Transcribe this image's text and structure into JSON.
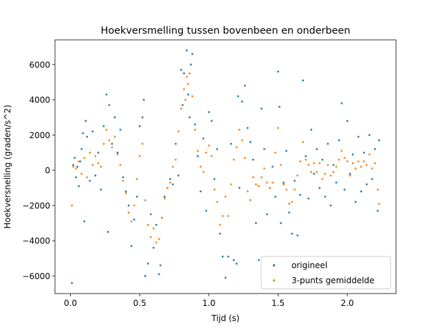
{
  "chart_data": {
    "type": "scatter",
    "title": "Hoekversmelling tussen bovenbeen en onderbeen",
    "xlabel": "Tijd (s)",
    "ylabel": "Hoekversnelling (graden/s^2)",
    "xlim": [
      -0.112,
      2.352
    ],
    "ylim": [
      -7000,
      7400
    ],
    "xticks": [
      0.0,
      0.5,
      1.0,
      1.5,
      2.0
    ],
    "xtick_labels": [
      "0.0",
      "0.5",
      "1.0",
      "1.5",
      "2.0"
    ],
    "yticks": [
      -6000,
      -4000,
      -2000,
      0,
      2000,
      4000,
      6000
    ],
    "ytick_labels": [
      "−6000",
      "−4000",
      "−2000",
      "0",
      "2000",
      "4000",
      "6000"
    ],
    "grid": false,
    "legend_position": "lower-right",
    "series": [
      {
        "name": "origineel",
        "color": "#1f77b4",
        "points": [
          [
            0.01,
            -6400
          ],
          [
            0.02,
            300
          ],
          [
            0.03,
            700
          ],
          [
            0.04,
            -400
          ],
          [
            0.05,
            200
          ],
          [
            0.06,
            -900
          ],
          [
            0.07,
            500
          ],
          [
            0.08,
            1200
          ],
          [
            0.09,
            2100
          ],
          [
            0.1,
            -2900
          ],
          [
            0.11,
            2800
          ],
          [
            0.12,
            1900
          ],
          [
            0.14,
            -600
          ],
          [
            0.16,
            2200
          ],
          [
            0.18,
            -300
          ],
          [
            0.2,
            1000
          ],
          [
            0.22,
            -1100
          ],
          [
            0.24,
            2500
          ],
          [
            0.26,
            4300
          ],
          [
            0.27,
            -3500
          ],
          [
            0.28,
            3700
          ],
          [
            0.3,
            1500
          ],
          [
            0.32,
            3000
          ],
          [
            0.34,
            1000
          ],
          [
            0.36,
            2300
          ],
          [
            0.38,
            -400
          ],
          [
            0.4,
            -1200
          ],
          [
            0.42,
            -2000
          ],
          [
            0.44,
            -4300
          ],
          [
            0.46,
            -2800
          ],
          [
            0.48,
            -1500
          ],
          [
            0.5,
            2500
          ],
          [
            0.52,
            3000
          ],
          [
            0.53,
            4000
          ],
          [
            0.54,
            -6000
          ],
          [
            0.56,
            -5300
          ],
          [
            0.58,
            -2500
          ],
          [
            0.6,
            -4400
          ],
          [
            0.62,
            -3100
          ],
          [
            0.64,
            -5900
          ],
          [
            0.65,
            -5400
          ],
          [
            0.66,
            -2700
          ],
          [
            0.68,
            -1500
          ],
          [
            0.7,
            -1000
          ],
          [
            0.72,
            -500
          ],
          [
            0.74,
            -800
          ],
          [
            0.76,
            1500
          ],
          [
            0.78,
            -300
          ],
          [
            0.8,
            5700
          ],
          [
            0.81,
            3700
          ],
          [
            0.82,
            5500
          ],
          [
            0.84,
            6800
          ],
          [
            0.85,
            4300
          ],
          [
            0.86,
            3000
          ],
          [
            0.87,
            6000
          ],
          [
            0.88,
            6600
          ],
          [
            0.9,
            2600
          ],
          [
            0.92,
            800
          ],
          [
            0.94,
            -1200
          ],
          [
            0.96,
            1800
          ],
          [
            0.98,
            -2300
          ],
          [
            1.0,
            3300
          ],
          [
            1.02,
            2800
          ],
          [
            1.04,
            -500
          ],
          [
            1.06,
            1200
          ],
          [
            1.08,
            -3600
          ],
          [
            1.1,
            -4900
          ],
          [
            1.12,
            -6100
          ],
          [
            1.14,
            -4900
          ],
          [
            1.16,
            1500
          ],
          [
            1.18,
            -5100
          ],
          [
            1.2,
            -5300
          ],
          [
            1.21,
            4200
          ],
          [
            1.22,
            -1000
          ],
          [
            1.24,
            3900
          ],
          [
            1.26,
            4800
          ],
          [
            1.28,
            2400
          ],
          [
            1.3,
            1600
          ],
          [
            1.32,
            600
          ],
          [
            1.34,
            -3000
          ],
          [
            1.36,
            -5100
          ],
          [
            1.38,
            3500
          ],
          [
            1.4,
            1200
          ],
          [
            1.42,
            -2500
          ],
          [
            1.44,
            -1000
          ],
          [
            1.46,
            200
          ],
          [
            1.48,
            -1500
          ],
          [
            1.5,
            5600
          ],
          [
            1.51,
            3600
          ],
          [
            1.52,
            -3000
          ],
          [
            1.54,
            -700
          ],
          [
            1.56,
            1100
          ],
          [
            1.58,
            -2400
          ],
          [
            1.6,
            -3600
          ],
          [
            1.62,
            -600
          ],
          [
            1.64,
            -3700
          ],
          [
            1.66,
            -1400
          ],
          [
            1.68,
            5100
          ],
          [
            1.7,
            800
          ],
          [
            1.72,
            -1600
          ],
          [
            1.74,
            2300
          ],
          [
            1.76,
            -200
          ],
          [
            1.78,
            1200
          ],
          [
            1.8,
            -1000
          ],
          [
            1.82,
            600
          ],
          [
            1.84,
            -1500
          ],
          [
            1.86,
            1500
          ],
          [
            1.88,
            -2000
          ],
          [
            1.9,
            300
          ],
          [
            1.92,
            -700
          ],
          [
            1.94,
            1700
          ],
          [
            1.96,
            3800
          ],
          [
            1.98,
            -1100
          ],
          [
            2.0,
            2800
          ],
          [
            2.02,
            -200
          ],
          [
            2.04,
            900
          ],
          [
            2.06,
            -1800
          ],
          [
            2.08,
            1900
          ],
          [
            2.1,
            -1200
          ],
          [
            2.12,
            1000
          ],
          [
            2.14,
            -800
          ],
          [
            2.16,
            2000
          ],
          [
            2.18,
            -500
          ],
          [
            2.2,
            1200
          ],
          [
            2.22,
            -2300
          ],
          [
            2.23,
            1700
          ]
        ]
      },
      {
        "name": "3-punts gemiddelde",
        "color": "#ff7f0e",
        "points": [
          [
            0.01,
            -2000
          ],
          [
            0.02,
            200
          ],
          [
            0.04,
            100
          ],
          [
            0.06,
            500
          ],
          [
            0.08,
            -200
          ],
          [
            0.1,
            700
          ],
          [
            0.12,
            -400
          ],
          [
            0.14,
            1000
          ],
          [
            0.16,
            300
          ],
          [
            0.18,
            800
          ],
          [
            0.2,
            400
          ],
          [
            0.22,
            200
          ],
          [
            0.24,
            1500
          ],
          [
            0.26,
            2300
          ],
          [
            0.28,
            1700
          ],
          [
            0.3,
            1300
          ],
          [
            0.32,
            1900
          ],
          [
            0.34,
            900
          ],
          [
            0.36,
            300
          ],
          [
            0.38,
            -600
          ],
          [
            0.4,
            -1300
          ],
          [
            0.42,
            -2400
          ],
          [
            0.44,
            -2900
          ],
          [
            0.46,
            -2000
          ],
          [
            0.48,
            -500
          ],
          [
            0.5,
            800
          ],
          [
            0.52,
            1500
          ],
          [
            0.54,
            -1700
          ],
          [
            0.56,
            -3100
          ],
          [
            0.58,
            -3800
          ],
          [
            0.6,
            -3300
          ],
          [
            0.62,
            -4100
          ],
          [
            0.64,
            -3900
          ],
          [
            0.66,
            -2700
          ],
          [
            0.68,
            -1600
          ],
          [
            0.7,
            -1000
          ],
          [
            0.72,
            -700
          ],
          [
            0.74,
            200
          ],
          [
            0.76,
            600
          ],
          [
            0.78,
            2200
          ],
          [
            0.8,
            3500
          ],
          [
            0.82,
            4600
          ],
          [
            0.83,
            4000
          ],
          [
            0.84,
            5300
          ],
          [
            0.85,
            4900
          ],
          [
            0.86,
            5500
          ],
          [
            0.88,
            4200
          ],
          [
            0.9,
            2300
          ],
          [
            0.92,
            1100
          ],
          [
            0.94,
            200
          ],
          [
            0.96,
            -100
          ],
          [
            0.98,
            1000
          ],
          [
            1.0,
            1400
          ],
          [
            1.02,
            800
          ],
          [
            1.04,
            -1100
          ],
          [
            1.06,
            -1800
          ],
          [
            1.08,
            -3100
          ],
          [
            1.1,
            -2600
          ],
          [
            1.12,
            -1500
          ],
          [
            1.14,
            -2600
          ],
          [
            1.16,
            -800
          ],
          [
            1.18,
            600
          ],
          [
            1.2,
            1300
          ],
          [
            1.22,
            2300
          ],
          [
            1.24,
            1700
          ],
          [
            1.26,
            700
          ],
          [
            1.28,
            -1200
          ],
          [
            1.3,
            -1700
          ],
          [
            1.32,
            -400
          ],
          [
            1.34,
            -800
          ],
          [
            1.36,
            -900
          ],
          [
            1.38,
            -400
          ],
          [
            1.4,
            100
          ],
          [
            1.42,
            -700
          ],
          [
            1.44,
            -1000
          ],
          [
            1.46,
            -700
          ],
          [
            1.48,
            1000
          ],
          [
            1.5,
            2400
          ],
          [
            1.52,
            300
          ],
          [
            1.54,
            -800
          ],
          [
            1.56,
            -1100
          ],
          [
            1.58,
            -1900
          ],
          [
            1.6,
            -1800
          ],
          [
            1.62,
            -1100
          ],
          [
            1.64,
            -300
          ],
          [
            1.66,
            500
          ],
          [
            1.68,
            1600
          ],
          [
            1.7,
            600
          ],
          [
            1.72,
            300
          ],
          [
            1.74,
            -100
          ],
          [
            1.76,
            400
          ],
          [
            1.78,
            -100
          ],
          [
            1.8,
            400
          ],
          [
            1.82,
            -500
          ],
          [
            1.84,
            -200
          ],
          [
            1.86,
            300
          ],
          [
            1.88,
            -300
          ],
          [
            1.9,
            -100
          ],
          [
            1.92,
            200
          ],
          [
            1.94,
            600
          ],
          [
            1.96,
            1100
          ],
          [
            1.98,
            700
          ],
          [
            2.0,
            500
          ],
          [
            2.02,
            -300
          ],
          [
            2.04,
            400
          ],
          [
            2.06,
            100
          ],
          [
            2.08,
            500
          ],
          [
            2.1,
            200
          ],
          [
            2.12,
            500
          ],
          [
            2.14,
            300
          ],
          [
            2.16,
            900
          ],
          [
            2.18,
            100
          ],
          [
            2.2,
            400
          ],
          [
            2.22,
            -1100
          ],
          [
            2.23,
            -1900
          ]
        ]
      }
    ]
  }
}
